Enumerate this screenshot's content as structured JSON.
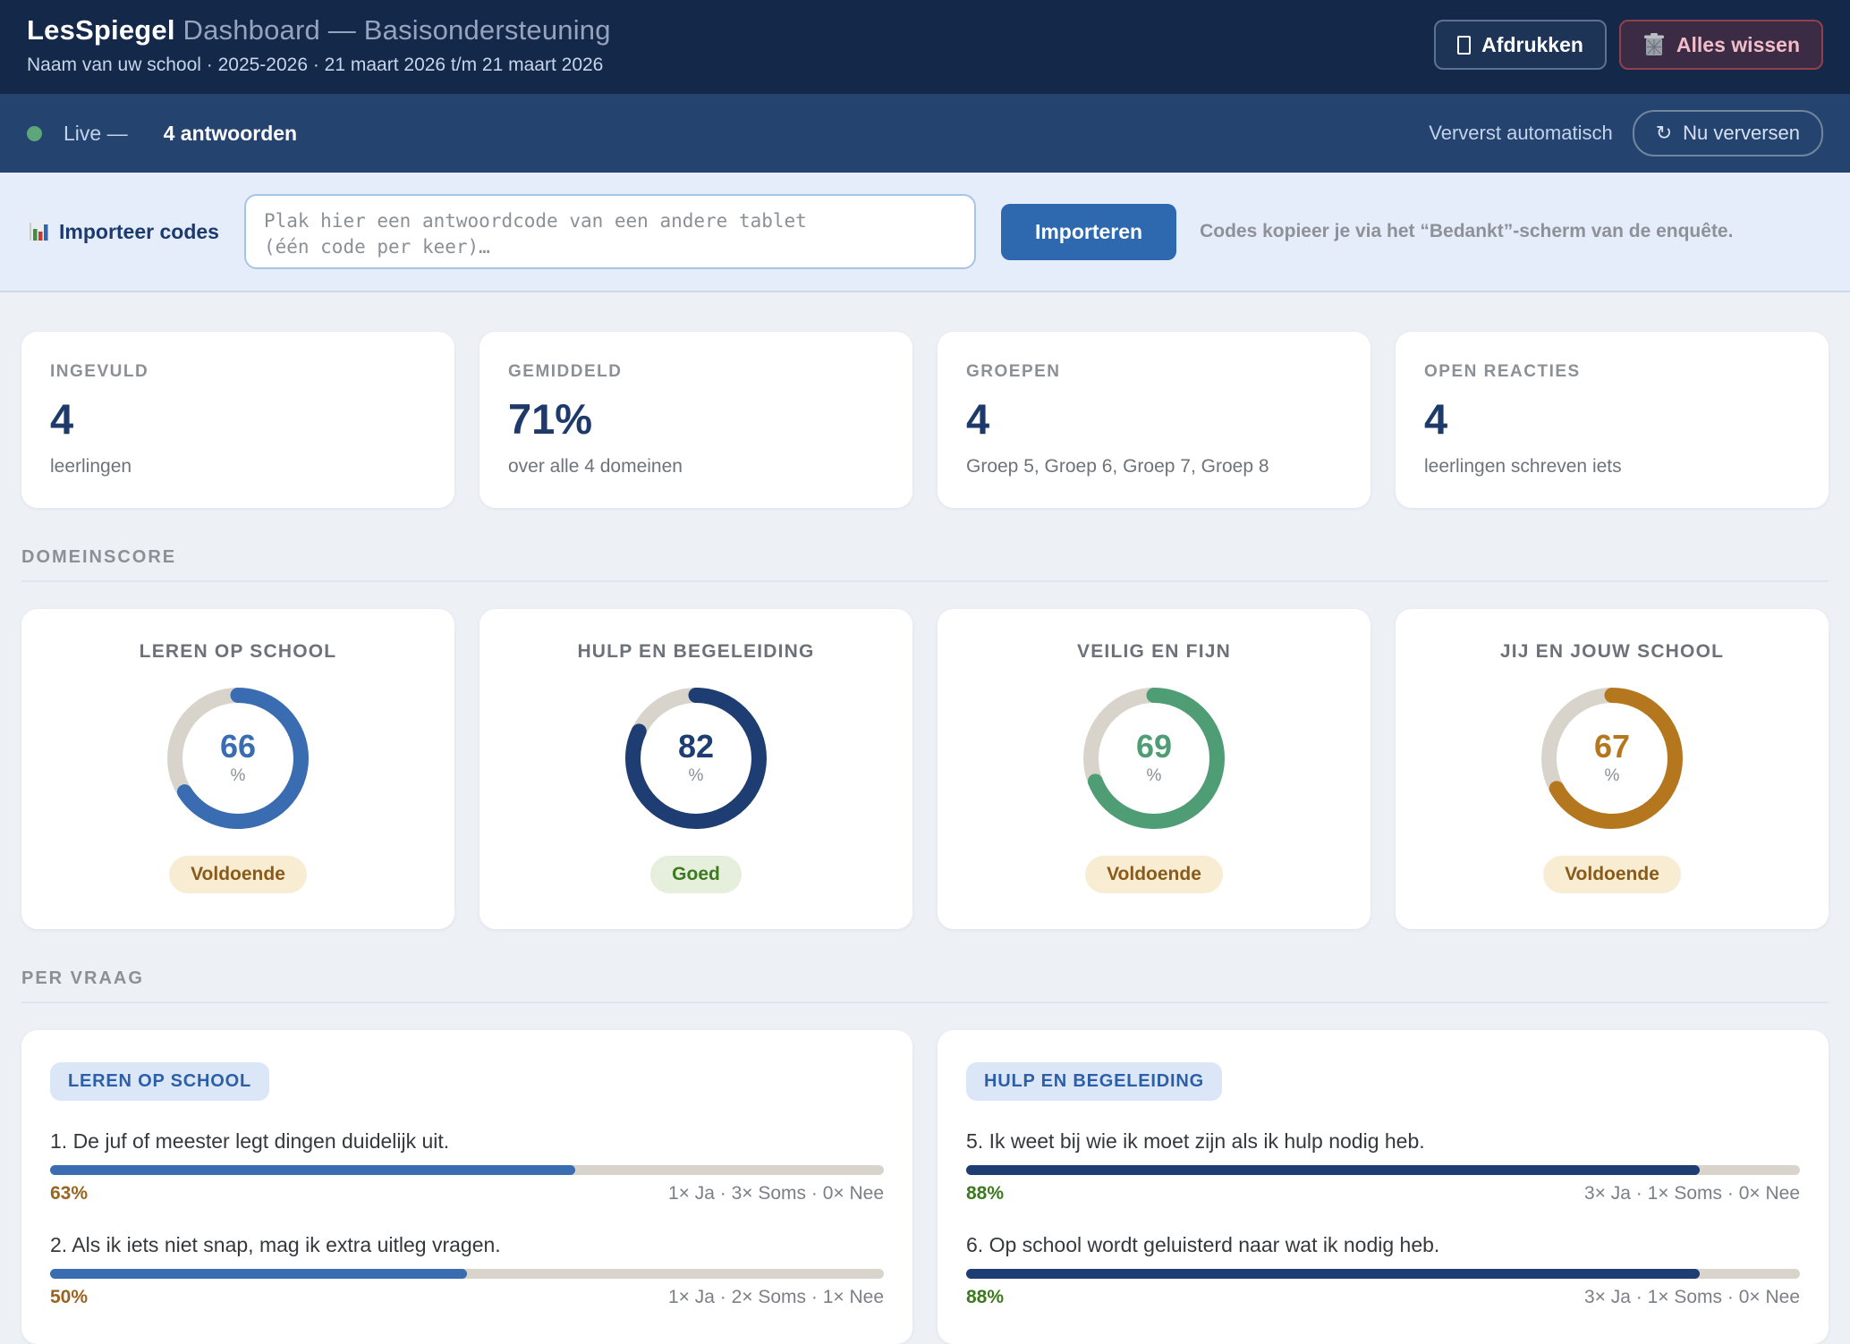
{
  "header": {
    "brand": "LesSpiegel",
    "title_rest": " Dashboard — Basisondersteuning",
    "subtitle": "Naam van uw school · 2025-2026 · 21 maart 2026 t/m 21 maart 2026",
    "print_label": "Afdrukken",
    "clear_label": "Alles wissen"
  },
  "live_bar": {
    "live_label": "Live —",
    "count_label": "4 antwoorden",
    "auto_label": "Ververst automatisch",
    "refresh_icon": "↻",
    "refresh_label": "Nu verversen"
  },
  "import_bar": {
    "label": "Importeer codes",
    "placeholder": "Plak hier een antwoordcode van een andere tablet\n(één code per keer)…",
    "button_label": "Importeren",
    "hint": "Codes kopieer je via het “Bedankt”-scherm van de enquête."
  },
  "stats": [
    {
      "label": "INGEVULD",
      "value": "4",
      "caption": "leerlingen"
    },
    {
      "label": "GEMIDDELD",
      "value": "71%",
      "caption": "over alle 4 domeinen"
    },
    {
      "label": "GROEPEN",
      "value": "4",
      "caption": "Groep 5, Groep 6, Groep 7, Groep 8"
    },
    {
      "label": "OPEN REACTIES",
      "value": "4",
      "caption": "leerlingen schreven iets"
    }
  ],
  "sections": {
    "domain_scores": "DOMEINSCORE",
    "per_question": "PER VRAAG"
  },
  "chart_data": {
    "donuts": {
      "type": "donut",
      "unit": "%",
      "range": [
        0,
        100
      ],
      "track_color": "#d8d4cc",
      "items": [
        {
          "label": "LEREN OP SCHOOL",
          "value": 66,
          "badge": "Voldoende",
          "color": "#3a6cb2",
          "badge_bg": "#f8ecd2",
          "badge_fg": "#8a5a1a"
        },
        {
          "label": "HULP EN BEGELEIDING",
          "value": 82,
          "badge": "Goed",
          "color": "#1e3d72",
          "badge_bg": "#e5efdb",
          "badge_fg": "#3d7a1f"
        },
        {
          "label": "VEILIG EN FIJN",
          "value": 69,
          "badge": "Voldoende",
          "color": "#4f9d74",
          "badge_bg": "#f8ecd2",
          "badge_fg": "#8a5a1a"
        },
        {
          "label": "JIJ EN JOUW SCHOOL",
          "value": 67,
          "badge": "Voldoende",
          "color": "#b4771e",
          "badge_bg": "#f8ecd2",
          "badge_fg": "#8a5a1a"
        }
      ]
    },
    "question_bars": {
      "type": "bar",
      "range": [
        0,
        100
      ],
      "groups": [
        {
          "badge": "LEREN OP SCHOOL",
          "bar_color": "#3a6cb2",
          "questions": [
            {
              "text": "1. De juf of meester legt dingen duidelijk uit.",
              "pct": 63,
              "pct_label": "63%",
              "pct_color": "#9a6420",
              "counts": "1× Ja · 3× Soms · 0× Nee"
            },
            {
              "text": "2. Als ik iets niet snap, mag ik extra uitleg vragen.",
              "pct": 50,
              "pct_label": "50%",
              "pct_color": "#9a6420",
              "counts": "1× Ja · 2× Soms · 1× Nee"
            }
          ]
        },
        {
          "badge": "HULP EN BEGELEIDING",
          "bar_color": "#1e3d72",
          "questions": [
            {
              "text": "5. Ik weet bij wie ik moet zijn als ik hulp nodig heb.",
              "pct": 88,
              "pct_label": "88%",
              "pct_color": "#3d7a1f",
              "counts": "3× Ja · 1× Soms · 0× Nee"
            },
            {
              "text": "6. Op school wordt geluisterd naar wat ik nodig heb.",
              "pct": 88,
              "pct_label": "88%",
              "pct_color": "#3d7a1f",
              "counts": "3× Ja · 1× Soms · 0× Nee"
            }
          ]
        }
      ]
    }
  }
}
